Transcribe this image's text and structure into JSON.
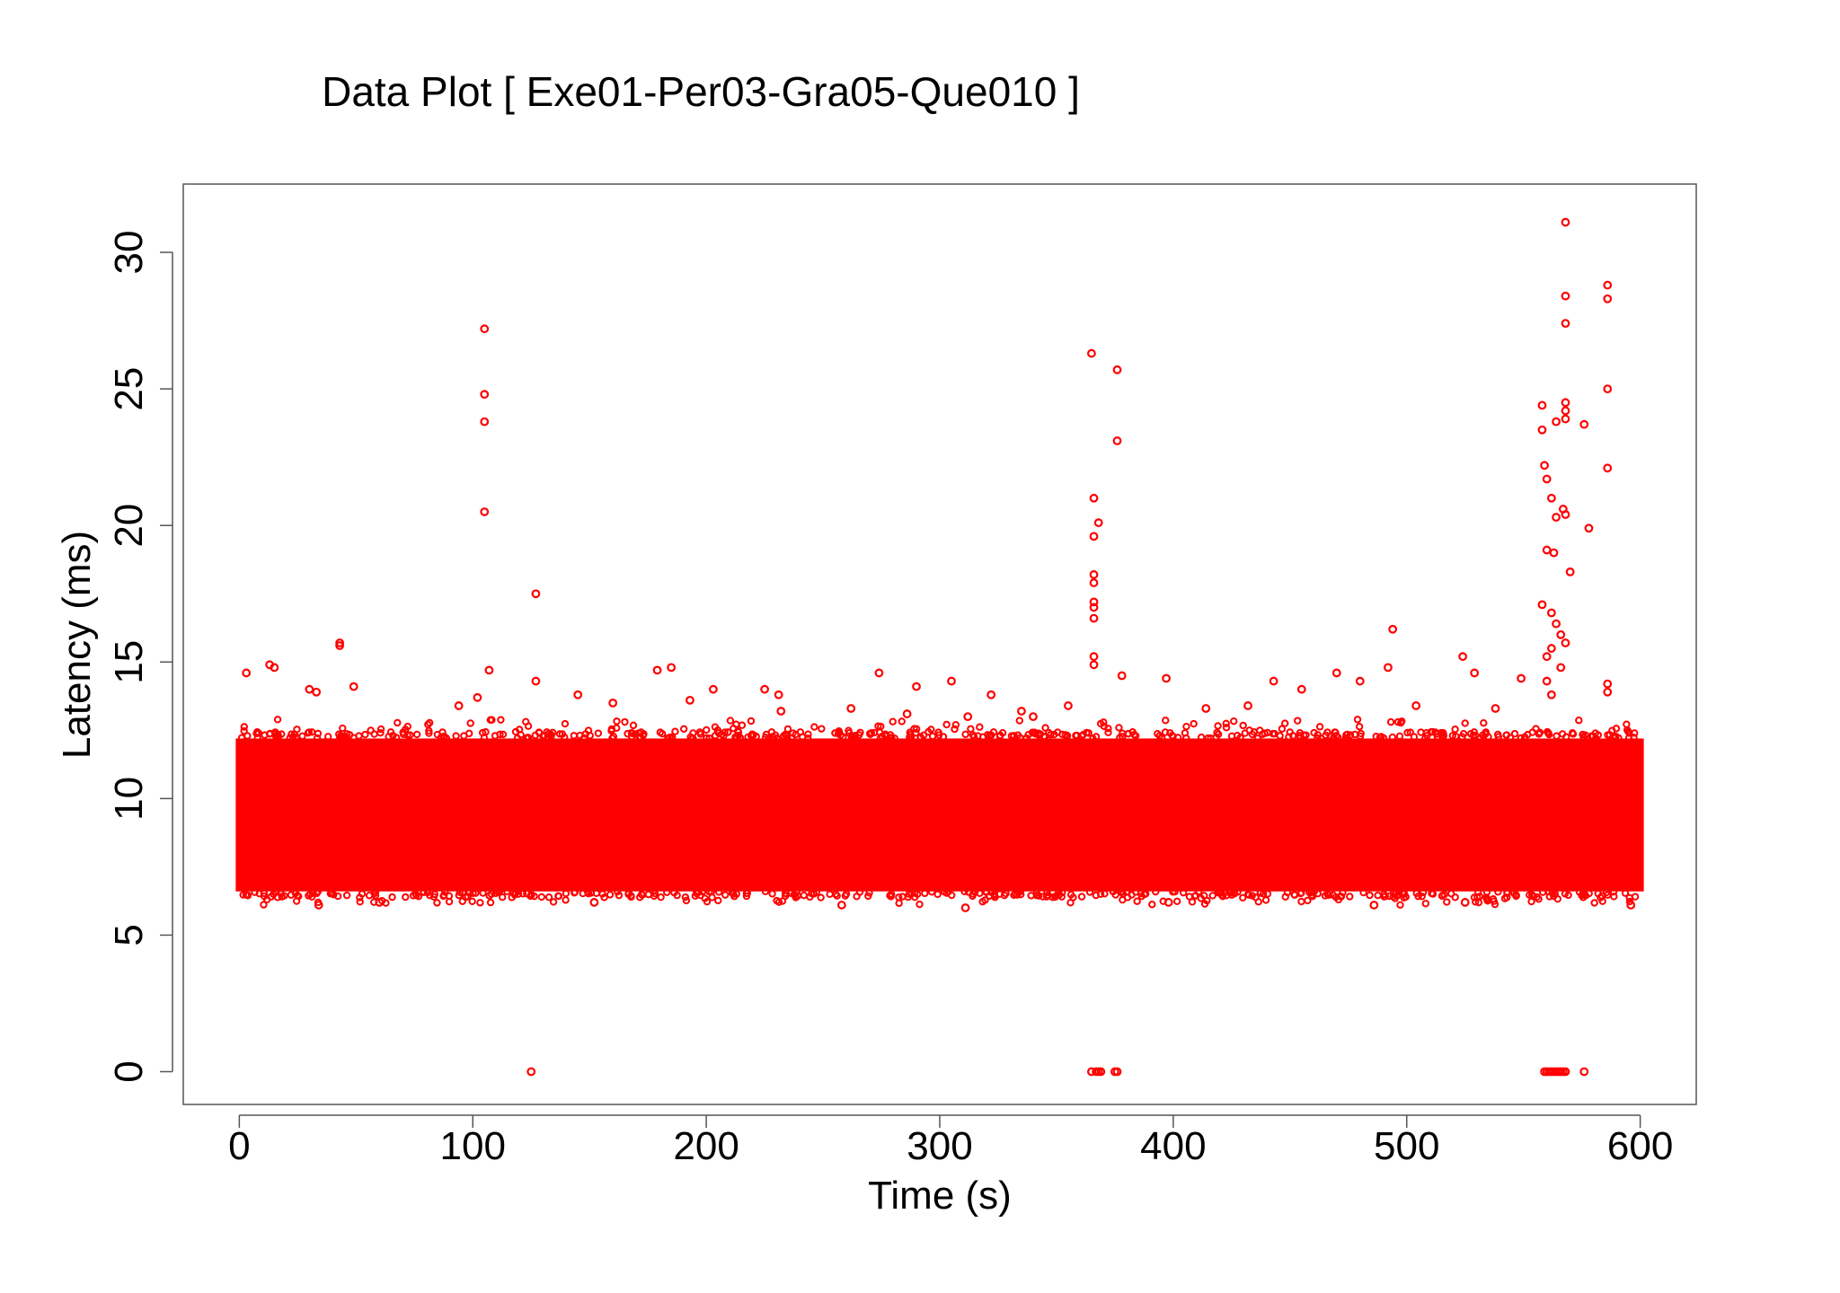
{
  "chart_data": {
    "type": "scatter",
    "title": "Data Plot [ Exe01-Per03-Gra05-Que010 ]",
    "xlabel": "Time (s)",
    "ylabel": "Latency (ms)",
    "xlim": [
      -24,
      624
    ],
    "ylim": [
      -1.2,
      32.5
    ],
    "xticks": [
      0,
      100,
      200,
      300,
      400,
      500,
      600
    ],
    "yticks": [
      0,
      5,
      10,
      15,
      20,
      25,
      30
    ],
    "grid": false,
    "marker": "open-circle",
    "color": "#ff0000",
    "bulk_band": {
      "x_range": [
        0,
        600
      ],
      "typical_latency_range": [
        6.6,
        12.2
      ],
      "edge_scatter_range": [
        6.1,
        12.9
      ]
    },
    "series": [
      {
        "values_sampled": true,
        "points": [
          [
            105,
            27.2
          ],
          [
            105,
            24.8
          ],
          [
            105,
            23.8
          ],
          [
            105,
            20.5
          ],
          [
            127,
            17.5
          ],
          [
            125,
            0
          ],
          [
            43,
            15.7
          ],
          [
            43,
            15.6
          ],
          [
            13,
            14.9
          ],
          [
            15,
            14.8
          ],
          [
            3,
            14.6
          ],
          [
            49,
            14.1
          ],
          [
            30,
            14.0
          ],
          [
            33,
            13.9
          ],
          [
            107,
            14.7
          ],
          [
            127,
            14.3
          ],
          [
            145,
            13.8
          ],
          [
            179,
            14.7
          ],
          [
            185,
            14.8
          ],
          [
            203,
            14.0
          ],
          [
            225,
            14.0
          ],
          [
            231,
            13.8
          ],
          [
            274,
            14.6
          ],
          [
            290,
            14.1
          ],
          [
            305,
            14.3
          ],
          [
            322,
            13.8
          ],
          [
            340,
            13.0
          ],
          [
            365,
            26.3
          ],
          [
            376,
            25.7
          ],
          [
            376,
            23.1
          ],
          [
            366,
            21.0
          ],
          [
            368,
            20.1
          ],
          [
            366,
            19.6
          ],
          [
            366,
            18.2
          ],
          [
            366,
            17.9
          ],
          [
            366,
            17.2
          ],
          [
            366,
            17.0
          ],
          [
            366,
            16.6
          ],
          [
            366,
            15.2
          ],
          [
            366,
            14.9
          ],
          [
            378,
            14.5
          ],
          [
            397,
            14.4
          ],
          [
            365,
            0
          ],
          [
            367,
            0
          ],
          [
            368,
            0
          ],
          [
            369,
            0
          ],
          [
            375,
            0
          ],
          [
            376,
            0
          ],
          [
            443,
            14.3
          ],
          [
            455,
            14.0
          ],
          [
            470,
            14.6
          ],
          [
            480,
            14.3
          ],
          [
            494,
            16.2
          ],
          [
            492,
            14.8
          ],
          [
            524,
            15.2
          ],
          [
            529,
            14.6
          ],
          [
            549,
            14.4
          ],
          [
            558,
            24.4
          ],
          [
            558,
            23.5
          ],
          [
            564,
            23.8
          ],
          [
            568,
            24.5
          ],
          [
            568,
            24.2
          ],
          [
            568,
            23.9
          ],
          [
            559,
            22.2
          ],
          [
            560,
            21.7
          ],
          [
            562,
            21.0
          ],
          [
            564,
            20.3
          ],
          [
            567,
            20.6
          ],
          [
            568,
            20.4
          ],
          [
            560,
            19.1
          ],
          [
            563,
            19.0
          ],
          [
            570,
            18.3
          ],
          [
            558,
            17.1
          ],
          [
            562,
            16.8
          ],
          [
            564,
            16.4
          ],
          [
            566,
            16.0
          ],
          [
            568,
            15.7
          ],
          [
            562,
            15.5
          ],
          [
            560,
            15.2
          ],
          [
            566,
            14.8
          ],
          [
            560,
            14.3
          ],
          [
            562,
            13.8
          ],
          [
            568,
            31.1
          ],
          [
            568,
            28.4
          ],
          [
            568,
            27.4
          ],
          [
            586,
            28.8
          ],
          [
            586,
            28.3
          ],
          [
            586,
            25.0
          ],
          [
            586,
            22.1
          ],
          [
            578,
            19.9
          ],
          [
            576,
            23.7
          ],
          [
            586,
            14.2
          ],
          [
            586,
            13.9
          ],
          [
            559,
            0
          ],
          [
            560,
            0
          ],
          [
            561,
            0
          ],
          [
            562,
            0
          ],
          [
            563,
            0
          ],
          [
            564,
            0
          ],
          [
            565,
            0
          ],
          [
            566,
            0
          ],
          [
            567,
            0
          ],
          [
            568,
            0
          ],
          [
            576,
            0
          ],
          [
            94,
            13.4
          ],
          [
            102,
            13.7
          ],
          [
            160,
            13.5
          ],
          [
            193,
            13.6
          ],
          [
            232,
            13.2
          ],
          [
            262,
            13.3
          ],
          [
            286,
            13.1
          ],
          [
            312,
            13.0
          ],
          [
            335,
            13.2
          ],
          [
            355,
            13.4
          ],
          [
            414,
            13.3
          ],
          [
            432,
            13.4
          ],
          [
            504,
            13.4
          ],
          [
            538,
            13.3
          ],
          [
            311,
            6.0
          ],
          [
            34,
            6.1
          ],
          [
            60,
            6.2
          ],
          [
            152,
            6.2
          ],
          [
            258,
            6.1
          ],
          [
            398,
            6.2
          ],
          [
            486,
            6.1
          ],
          [
            525,
            6.2
          ],
          [
            596,
            6.1
          ]
        ]
      }
    ]
  }
}
